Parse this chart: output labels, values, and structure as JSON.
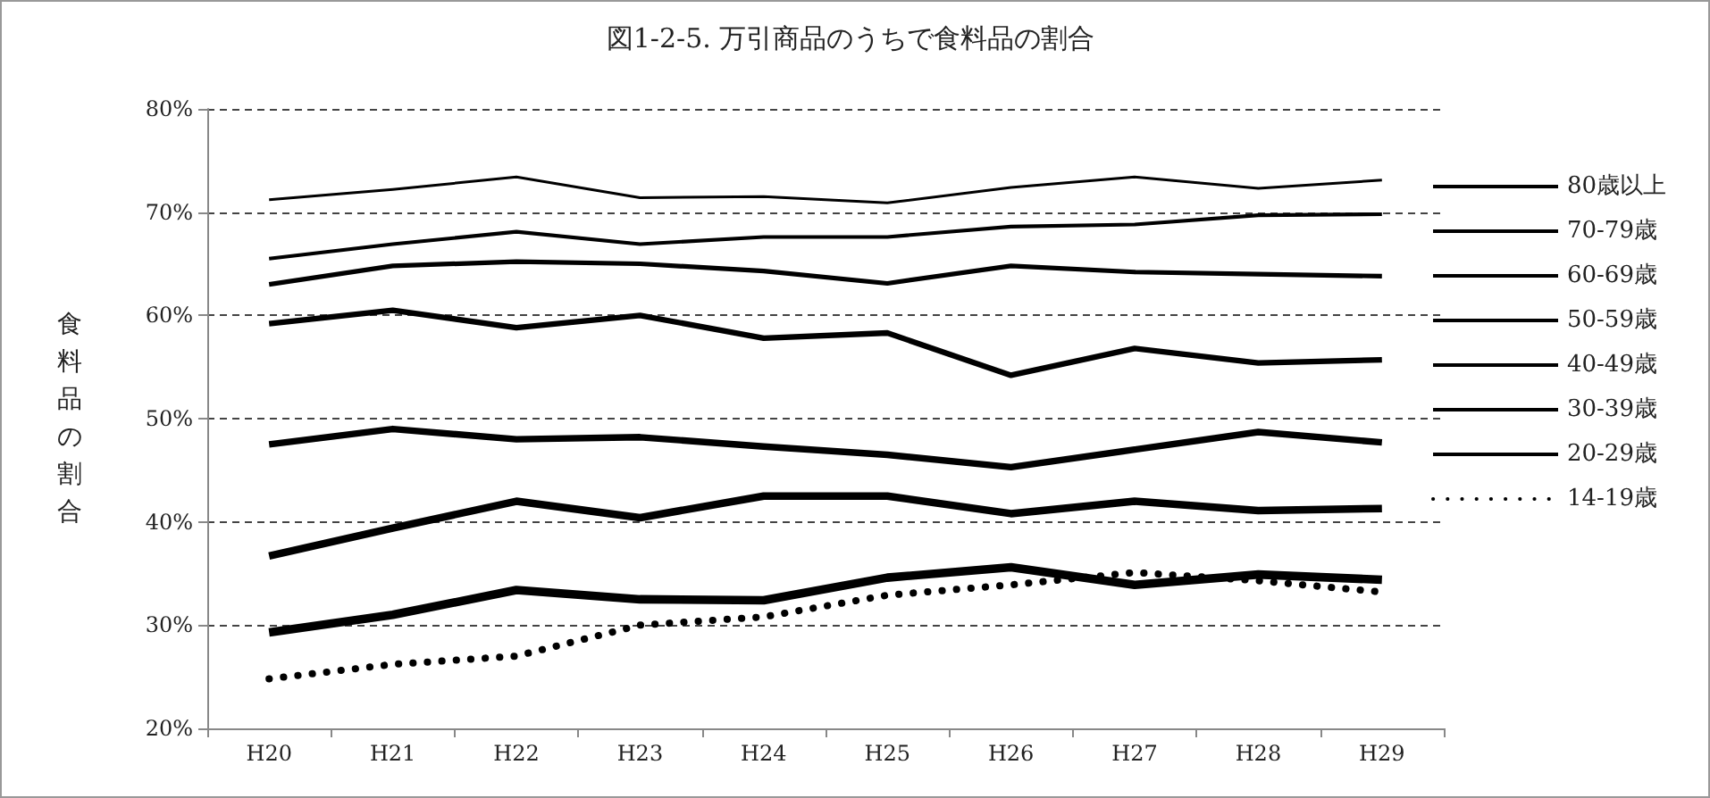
{
  "chart_data": {
    "type": "line",
    "title": "図1-2-5. 万引商品のうちで食料品の割合",
    "ylabel": "食料品の割合",
    "categories": [
      "H20",
      "H21",
      "H22",
      "H23",
      "H24",
      "H25",
      "H26",
      "H27",
      "H28",
      "H29"
    ],
    "ylim": [
      20,
      80
    ],
    "yticks": [
      {
        "value": 20,
        "label": "20%"
      },
      {
        "value": 30,
        "label": "30%"
      },
      {
        "value": 40,
        "label": "40%"
      },
      {
        "value": 50,
        "label": "50%"
      },
      {
        "value": 60,
        "label": "60%"
      },
      {
        "value": 70,
        "label": "70%"
      },
      {
        "value": 80,
        "label": "80%"
      }
    ],
    "grid": "y",
    "legend": "right",
    "marker": "none",
    "series": [
      {
        "name": "80歳以上",
        "color": "#000000",
        "line_style": "solid",
        "values": [
          71.2,
          72.2,
          73.4,
          71.4,
          71.5,
          70.9,
          72.4,
          73.4,
          72.3,
          73.1
        ]
      },
      {
        "name": "70-79歳",
        "color": "#000000",
        "line_style": "solid",
        "values": [
          65.5,
          66.9,
          68.1,
          66.9,
          67.6,
          67.6,
          68.6,
          68.8,
          69.7,
          69.8
        ]
      },
      {
        "name": "60-69歳",
        "color": "#000000",
        "line_style": "solid",
        "values": [
          63.0,
          64.8,
          65.2,
          65.0,
          64.3,
          63.1,
          64.8,
          64.2,
          64.0,
          63.8
        ]
      },
      {
        "name": "50-59歳",
        "color": "#000000",
        "line_style": "solid",
        "values": [
          59.2,
          60.5,
          58.8,
          60.0,
          57.8,
          58.3,
          54.2,
          56.8,
          55.4,
          55.7
        ]
      },
      {
        "name": "40-49歳",
        "color": "#000000",
        "line_style": "solid",
        "values": [
          47.5,
          49.0,
          48.0,
          48.2,
          47.3,
          46.5,
          45.3,
          47.0,
          48.7,
          47.7
        ]
      },
      {
        "name": "30-39歳",
        "color": "#000000",
        "line_style": "solid",
        "values": [
          36.7,
          39.4,
          42.0,
          40.4,
          42.5,
          42.5,
          40.8,
          42.0,
          41.1,
          41.3
        ]
      },
      {
        "name": "20-29歳",
        "color": "#000000",
        "line_style": "solid",
        "values": [
          29.3,
          31.0,
          33.4,
          32.5,
          32.4,
          34.6,
          35.6,
          33.9,
          34.9,
          34.4
        ]
      },
      {
        "name": "14-19歳",
        "color": "#000000",
        "line_style": "dotted",
        "values": [
          24.8,
          26.2,
          27.0,
          30.0,
          30.8,
          32.9,
          33.9,
          35.1,
          34.3,
          33.2
        ]
      }
    ]
  }
}
